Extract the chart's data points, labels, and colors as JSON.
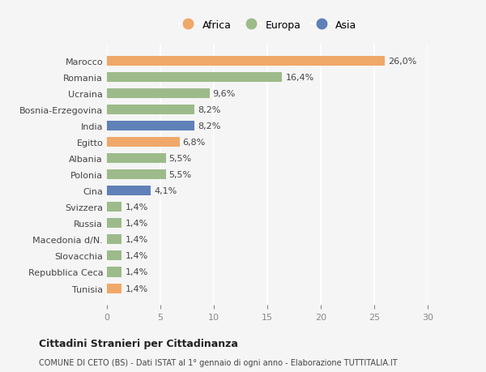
{
  "categories": [
    "Tunisia",
    "Repubblica Ceca",
    "Slovacchia",
    "Macedonia d/N.",
    "Russia",
    "Svizzera",
    "Cina",
    "Polonia",
    "Albania",
    "Egitto",
    "India",
    "Bosnia-Erzegovina",
    "Ucraina",
    "Romania",
    "Marocco"
  ],
  "values": [
    1.4,
    1.4,
    1.4,
    1.4,
    1.4,
    1.4,
    4.1,
    5.5,
    5.5,
    6.8,
    8.2,
    8.2,
    9.6,
    16.4,
    26.0
  ],
  "colors": [
    "#f0a868",
    "#9dbb8a",
    "#9dbb8a",
    "#9dbb8a",
    "#9dbb8a",
    "#9dbb8a",
    "#6080b8",
    "#9dbb8a",
    "#9dbb8a",
    "#f0a868",
    "#6080b8",
    "#9dbb8a",
    "#9dbb8a",
    "#9dbb8a",
    "#f0a868"
  ],
  "labels": [
    "1,4%",
    "1,4%",
    "1,4%",
    "1,4%",
    "1,4%",
    "1,4%",
    "4,1%",
    "5,5%",
    "5,5%",
    "6,8%",
    "8,2%",
    "8,2%",
    "9,6%",
    "16,4%",
    "26,0%"
  ],
  "title": "Cittadini Stranieri per Cittadinanza",
  "subtitle": "COMUNE DI CETO (BS) - Dati ISTAT al 1° gennaio di ogni anno - Elaborazione TUTTITALIA.IT",
  "xlim": [
    0,
    30
  ],
  "xticks": [
    0,
    5,
    10,
    15,
    20,
    25,
    30
  ],
  "legend": [
    {
      "label": "Africa",
      "color": "#f0a868"
    },
    {
      "label": "Europa",
      "color": "#9dbb8a"
    },
    {
      "label": "Asia",
      "color": "#6080b8"
    }
  ],
  "background_color": "#f5f5f5",
  "bar_height": 0.6
}
